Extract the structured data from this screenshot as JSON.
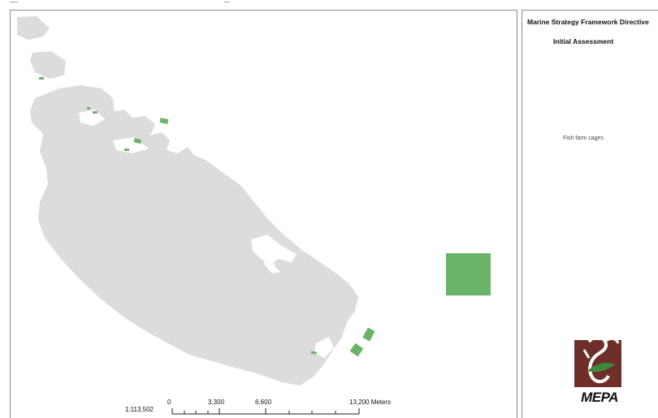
{
  "panel": {
    "title": "Marine Strategy Framework Directive",
    "subtitle": "Initial Assessment",
    "legend_item": "Fish farm cages"
  },
  "logo": {
    "text": "MEPA",
    "icon": "mepa-logo"
  },
  "scale": {
    "ratio": "1:113,502",
    "ticks": [
      "0",
      "3,300",
      "6,600",
      "13,200 Meters"
    ]
  },
  "colors": {
    "land": "#dcdcdc",
    "fish_farm": "#6ab46a",
    "logo_bg": "#6e2f2a"
  }
}
